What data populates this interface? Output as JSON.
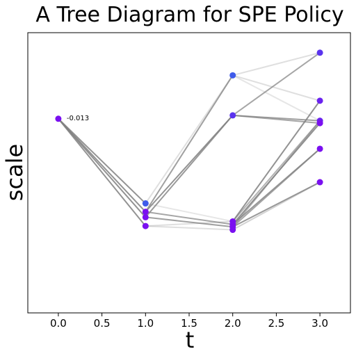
{
  "chart_data": {
    "type": "scatter",
    "title": "A Tree Diagram for SPE Policy",
    "xlabel": "t",
    "ylabel": "scale",
    "xlim": [
      -0.35,
      3.35
    ],
    "ylim": [
      -0.11,
      0.03
    ],
    "xticks": [
      "0.0",
      "0.5",
      "1.0",
      "1.5",
      "2.0",
      "2.5",
      "3.0"
    ],
    "xtick_values": [
      0,
      0.5,
      1.0,
      1.5,
      2.0,
      2.5,
      3.0
    ],
    "yticks_visible": false,
    "grid": false,
    "annotations": [
      {
        "text": "-0.013",
        "x": 0.0,
        "y": -0.013
      }
    ],
    "nodes": [
      {
        "t": 0,
        "value": -0.013,
        "color": "#7a10f0"
      },
      {
        "t": 1,
        "value": -0.0553,
        "color": "#3f5bea"
      },
      {
        "t": 1,
        "value": -0.0595,
        "color": "#7a10f0"
      },
      {
        "t": 1,
        "value": -0.0622,
        "color": "#7a10f0"
      },
      {
        "t": 1,
        "value": -0.0666,
        "color": "#7a10f0"
      },
      {
        "t": 2,
        "value": 0.0087,
        "color": "#3f5bea"
      },
      {
        "t": 2,
        "value": -0.0113,
        "color": "#5a33ee"
      },
      {
        "t": 2,
        "value": -0.0643,
        "color": "#7a10f0"
      },
      {
        "t": 2,
        "value": -0.0658,
        "color": "#7a10f0"
      },
      {
        "t": 2,
        "value": -0.067,
        "color": "#7a10f0"
      },
      {
        "t": 2,
        "value": -0.0685,
        "color": "#7a10f0"
      },
      {
        "t": 3,
        "value": 0.02,
        "color": "#5a33ee"
      },
      {
        "t": 3,
        "value": -0.004,
        "color": "#6a22ef"
      },
      {
        "t": 3,
        "value": -0.014,
        "color": "#6a22ef"
      },
      {
        "t": 3,
        "value": -0.0152,
        "color": "#7a10f0"
      },
      {
        "t": 3,
        "value": -0.028,
        "color": "#7a10f0"
      },
      {
        "t": 3,
        "value": -0.0447,
        "color": "#7a10f0"
      }
    ],
    "edges": [
      {
        "from": [
          0,
          -0.013
        ],
        "to": [
          1,
          -0.0553
        ],
        "opacity": 0.85
      },
      {
        "from": [
          0,
          -0.013
        ],
        "to": [
          1,
          -0.0595
        ],
        "opacity": 0.85
      },
      {
        "from": [
          0,
          -0.013
        ],
        "to": [
          1,
          -0.0622
        ],
        "opacity": 0.85
      },
      {
        "from": [
          0,
          -0.013
        ],
        "to": [
          1,
          -0.0666
        ],
        "opacity": 0.85
      },
      {
        "from": [
          1,
          -0.0553
        ],
        "to": [
          2,
          0.0087
        ],
        "opacity": 0.25
      },
      {
        "from": [
          1,
          -0.0553
        ],
        "to": [
          2,
          -0.0643
        ],
        "opacity": 0.2
      },
      {
        "from": [
          1,
          -0.0595
        ],
        "to": [
          2,
          0.0087
        ],
        "opacity": 0.75
      },
      {
        "from": [
          1,
          -0.0595
        ],
        "to": [
          2,
          -0.0113
        ],
        "opacity": 0.85
      },
      {
        "from": [
          1,
          -0.0595
        ],
        "to": [
          2,
          -0.0658
        ],
        "opacity": 0.7
      },
      {
        "from": [
          1,
          -0.0622
        ],
        "to": [
          2,
          -0.0113
        ],
        "opacity": 0.8
      },
      {
        "from": [
          1,
          -0.0622
        ],
        "to": [
          2,
          -0.067
        ],
        "opacity": 0.75
      },
      {
        "from": [
          1,
          -0.0666
        ],
        "to": [
          2,
          -0.0643
        ],
        "opacity": 0.25
      },
      {
        "from": [
          1,
          -0.0666
        ],
        "to": [
          2,
          -0.0685
        ],
        "opacity": 0.25
      },
      {
        "from": [
          2,
          0.0087
        ],
        "to": [
          3,
          0.02
        ],
        "opacity": 0.25
      },
      {
        "from": [
          2,
          0.0087
        ],
        "to": [
          3,
          -0.004
        ],
        "opacity": 0.25
      },
      {
        "from": [
          2,
          0.0087
        ],
        "to": [
          3,
          -0.014
        ],
        "opacity": 0.2
      },
      {
        "from": [
          2,
          -0.0113
        ],
        "to": [
          3,
          0.02
        ],
        "opacity": 0.7
      },
      {
        "from": [
          2,
          -0.0113
        ],
        "to": [
          3,
          -0.014
        ],
        "opacity": 0.75
      },
      {
        "from": [
          2,
          -0.0113
        ],
        "to": [
          3,
          -0.0152
        ],
        "opacity": 0.7
      },
      {
        "from": [
          2,
          -0.0643
        ],
        "to": [
          3,
          -0.004
        ],
        "opacity": 0.85
      },
      {
        "from": [
          2,
          -0.0643
        ],
        "to": [
          3,
          -0.014
        ],
        "opacity": 0.6
      },
      {
        "from": [
          2,
          -0.0658
        ],
        "to": [
          3,
          -0.0152
        ],
        "opacity": 0.85
      },
      {
        "from": [
          2,
          -0.0658
        ],
        "to": [
          3,
          -0.028
        ],
        "opacity": 0.8
      },
      {
        "from": [
          2,
          -0.067
        ],
        "to": [
          3,
          -0.014
        ],
        "opacity": 0.6
      },
      {
        "from": [
          2,
          -0.067
        ],
        "to": [
          3,
          -0.028
        ],
        "opacity": 0.7
      },
      {
        "from": [
          2,
          -0.067
        ],
        "to": [
          3,
          -0.0447
        ],
        "opacity": 0.8
      },
      {
        "from": [
          2,
          -0.0685
        ],
        "to": [
          3,
          -0.0447
        ],
        "opacity": 0.35
      }
    ]
  }
}
